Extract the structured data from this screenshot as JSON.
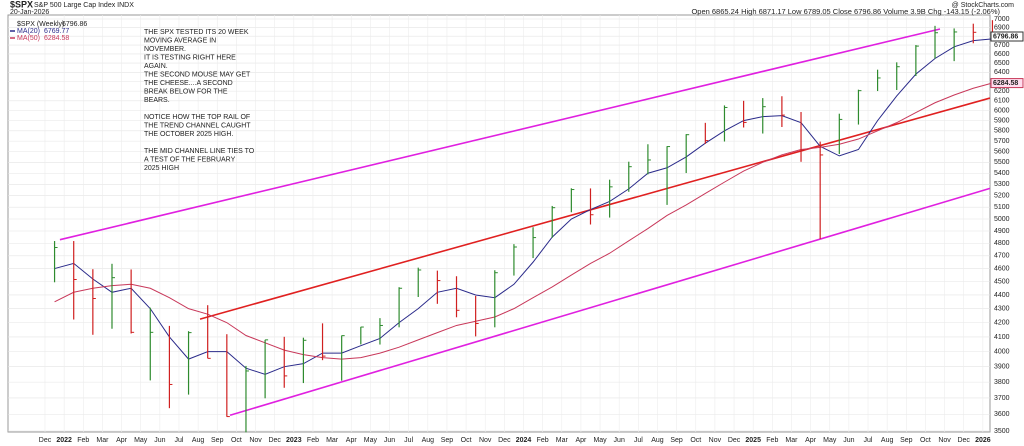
{
  "chart_data": {
    "type": "ohlc",
    "title": "$SPX",
    "subtitle": "S&P 500 Large Cap Index INDX",
    "date": "20-Jan-2026",
    "source": "@ StockCharts.com",
    "quote": "Open 6865.24 High 6871.17 Low 6789.05 Close 6796.86 Volume 3.9B Chg -143.15 (-2.06%)",
    "categories": [
      "Dec",
      "2022",
      "Feb",
      "Mar",
      "Apr",
      "May",
      "Jun",
      "Jul",
      "Aug",
      "Sep",
      "Oct",
      "Nov",
      "Dec",
      "2023",
      "Feb",
      "Mar",
      "Apr",
      "May",
      "Jun",
      "Jul",
      "Aug",
      "Sep",
      "Oct",
      "Nov",
      "Dec",
      "2024",
      "Feb",
      "Mar",
      "Apr",
      "May",
      "Jun",
      "Jul",
      "Aug",
      "Sep",
      "Oct",
      "Nov",
      "Dec",
      "2025",
      "Feb",
      "Mar",
      "Apr",
      "May",
      "Jun",
      "Jul",
      "Aug",
      "Sep",
      "Oct",
      "Nov",
      "Dec",
      "2026"
    ],
    "price": {
      "name": "$SPX (Weekly)",
      "last": 6796.86,
      "up_color": "#2e8b2e",
      "down_color": "#d02020",
      "high": [
        4818,
        4818,
        4595,
        4637,
        4593,
        4307,
        4177,
        4140,
        4325,
        4119,
        3905,
        4080,
        4101,
        4095,
        4195,
        4110,
        4170,
        4232,
        4458,
        4607,
        4584,
        4541,
        4393,
        4587,
        4793,
        4931,
        5111,
        5265,
        5264,
        5342,
        5506,
        5670,
        5651,
        5767,
        5878,
        6053,
        6100,
        6128,
        6147,
        5986,
        5695,
        5969,
        6215,
        6428,
        6508,
        6700,
        6920,
        6890,
        6945,
        6986
      ],
      "low": [
        4495,
        4222,
        4115,
        4157,
        4124,
        3811,
        3637,
        3721,
        3955,
        3585,
        3492,
        3698,
        3764,
        3794,
        3943,
        3809,
        4049,
        4048,
        4167,
        4385,
        4335,
        4238,
        4104,
        4167,
        4546,
        4682,
        4845,
        5057,
        4954,
        5012,
        5234,
        5390,
        5120,
        5402,
        5674,
        5696,
        5832,
        5773,
        5837,
        5505,
        4835,
        5578,
        5861,
        6201,
        6212,
        6360,
        6550,
        6521,
        6720,
        6789
      ],
      "close": [
        4766,
        4516,
        4374,
        4530,
        4132,
        4132,
        3785,
        4130,
        3955,
        3586,
        3872,
        4080,
        3840,
        4077,
        3970,
        4109,
        4169,
        4180,
        4450,
        4589,
        4508,
        4288,
        4194,
        4568,
        4770,
        4846,
        5096,
        5254,
        5036,
        5278,
        5460,
        5522,
        5648,
        5762,
        5705,
        6032,
        5882,
        6040,
        5955,
        5612,
        5569,
        5912,
        6205,
        6339,
        6460,
        6688,
        6840,
        6849,
        6845,
        6797
      ]
    },
    "series": [
      {
        "name": "MA(20)",
        "last": 6769.77,
        "color": "#2a2a8a",
        "values": [
          4600,
          4640,
          4520,
          4420,
          4450,
          4300,
          4100,
          3950,
          4000,
          4000,
          3890,
          3850,
          3900,
          3920,
          3990,
          3990,
          4040,
          4090,
          4200,
          4300,
          4420,
          4450,
          4400,
          4380,
          4480,
          4650,
          4850,
          5000,
          5080,
          5150,
          5260,
          5400,
          5450,
          5550,
          5680,
          5800,
          5900,
          5940,
          5950,
          5880,
          5650,
          5560,
          5620,
          5900,
          6150,
          6380,
          6550,
          6680,
          6750,
          6770
        ]
      },
      {
        "name": "MA(50)",
        "last": 6284.58,
        "color": "#c8385a",
        "values": [
          4350,
          4420,
          4450,
          4470,
          4480,
          4450,
          4380,
          4300,
          4260,
          4200,
          4110,
          4060,
          4010,
          3980,
          3960,
          3950,
          3960,
          3990,
          4030,
          4080,
          4130,
          4180,
          4210,
          4240,
          4300,
          4380,
          4460,
          4550,
          4640,
          4720,
          4820,
          4920,
          5030,
          5120,
          5220,
          5320,
          5420,
          5500,
          5570,
          5620,
          5640,
          5670,
          5720,
          5800,
          5880,
          5980,
          6080,
          6160,
          6230,
          6285
        ]
      }
    ],
    "trendlines": [
      {
        "color": "#e020e0",
        "x": [
          0.78,
          46.76
        ],
        "y": [
          4829,
          6883
        ]
      },
      {
        "color": "#e020e0",
        "x": [
          9.67,
          49.37
        ],
        "y": [
          3594,
          5264
        ]
      },
      {
        "color": "#e02020",
        "x": [
          8.1,
          49.37
        ],
        "y": [
          4225,
          6128
        ]
      }
    ],
    "annotation": [
      "THE SPX TESTED ITS 20 WEEK",
      "MOVING AVERAGE IN",
      "NOVEMBER.",
      "IT IS TESTING RIGHT HERE",
      "AGAIN.",
      "THE SECOND MOUSE MAY GET",
      "THE CHEESE....A SECOND",
      "BREAK BELOW FOR THE",
      "BEARS.",
      "",
      "NOTICE HOW THE TOP RAIL OF",
      "THE TREND CHANNEL CAUGHT",
      "THE OCTOBER 2025 HIGH.",
      "",
      "THE MID CHANNEL LINE TIES TO",
      "A TEST OF THE FEBRUARY",
      "2025 HIGH"
    ],
    "log_scale": true,
    "grid": true,
    "ylim": [
      3500,
      7000
    ],
    "yticks": [
      3500,
      3600,
      3700,
      3800,
      3900,
      4000,
      4100,
      4200,
      4300,
      4400,
      4500,
      4600,
      4700,
      4800,
      4900,
      5000,
      5100,
      5200,
      5300,
      5400,
      5500,
      5600,
      5700,
      5800,
      5900,
      6000,
      6100,
      6200,
      6300,
      6400,
      6500,
      6600,
      6700,
      6800,
      6900,
      7000
    ]
  }
}
